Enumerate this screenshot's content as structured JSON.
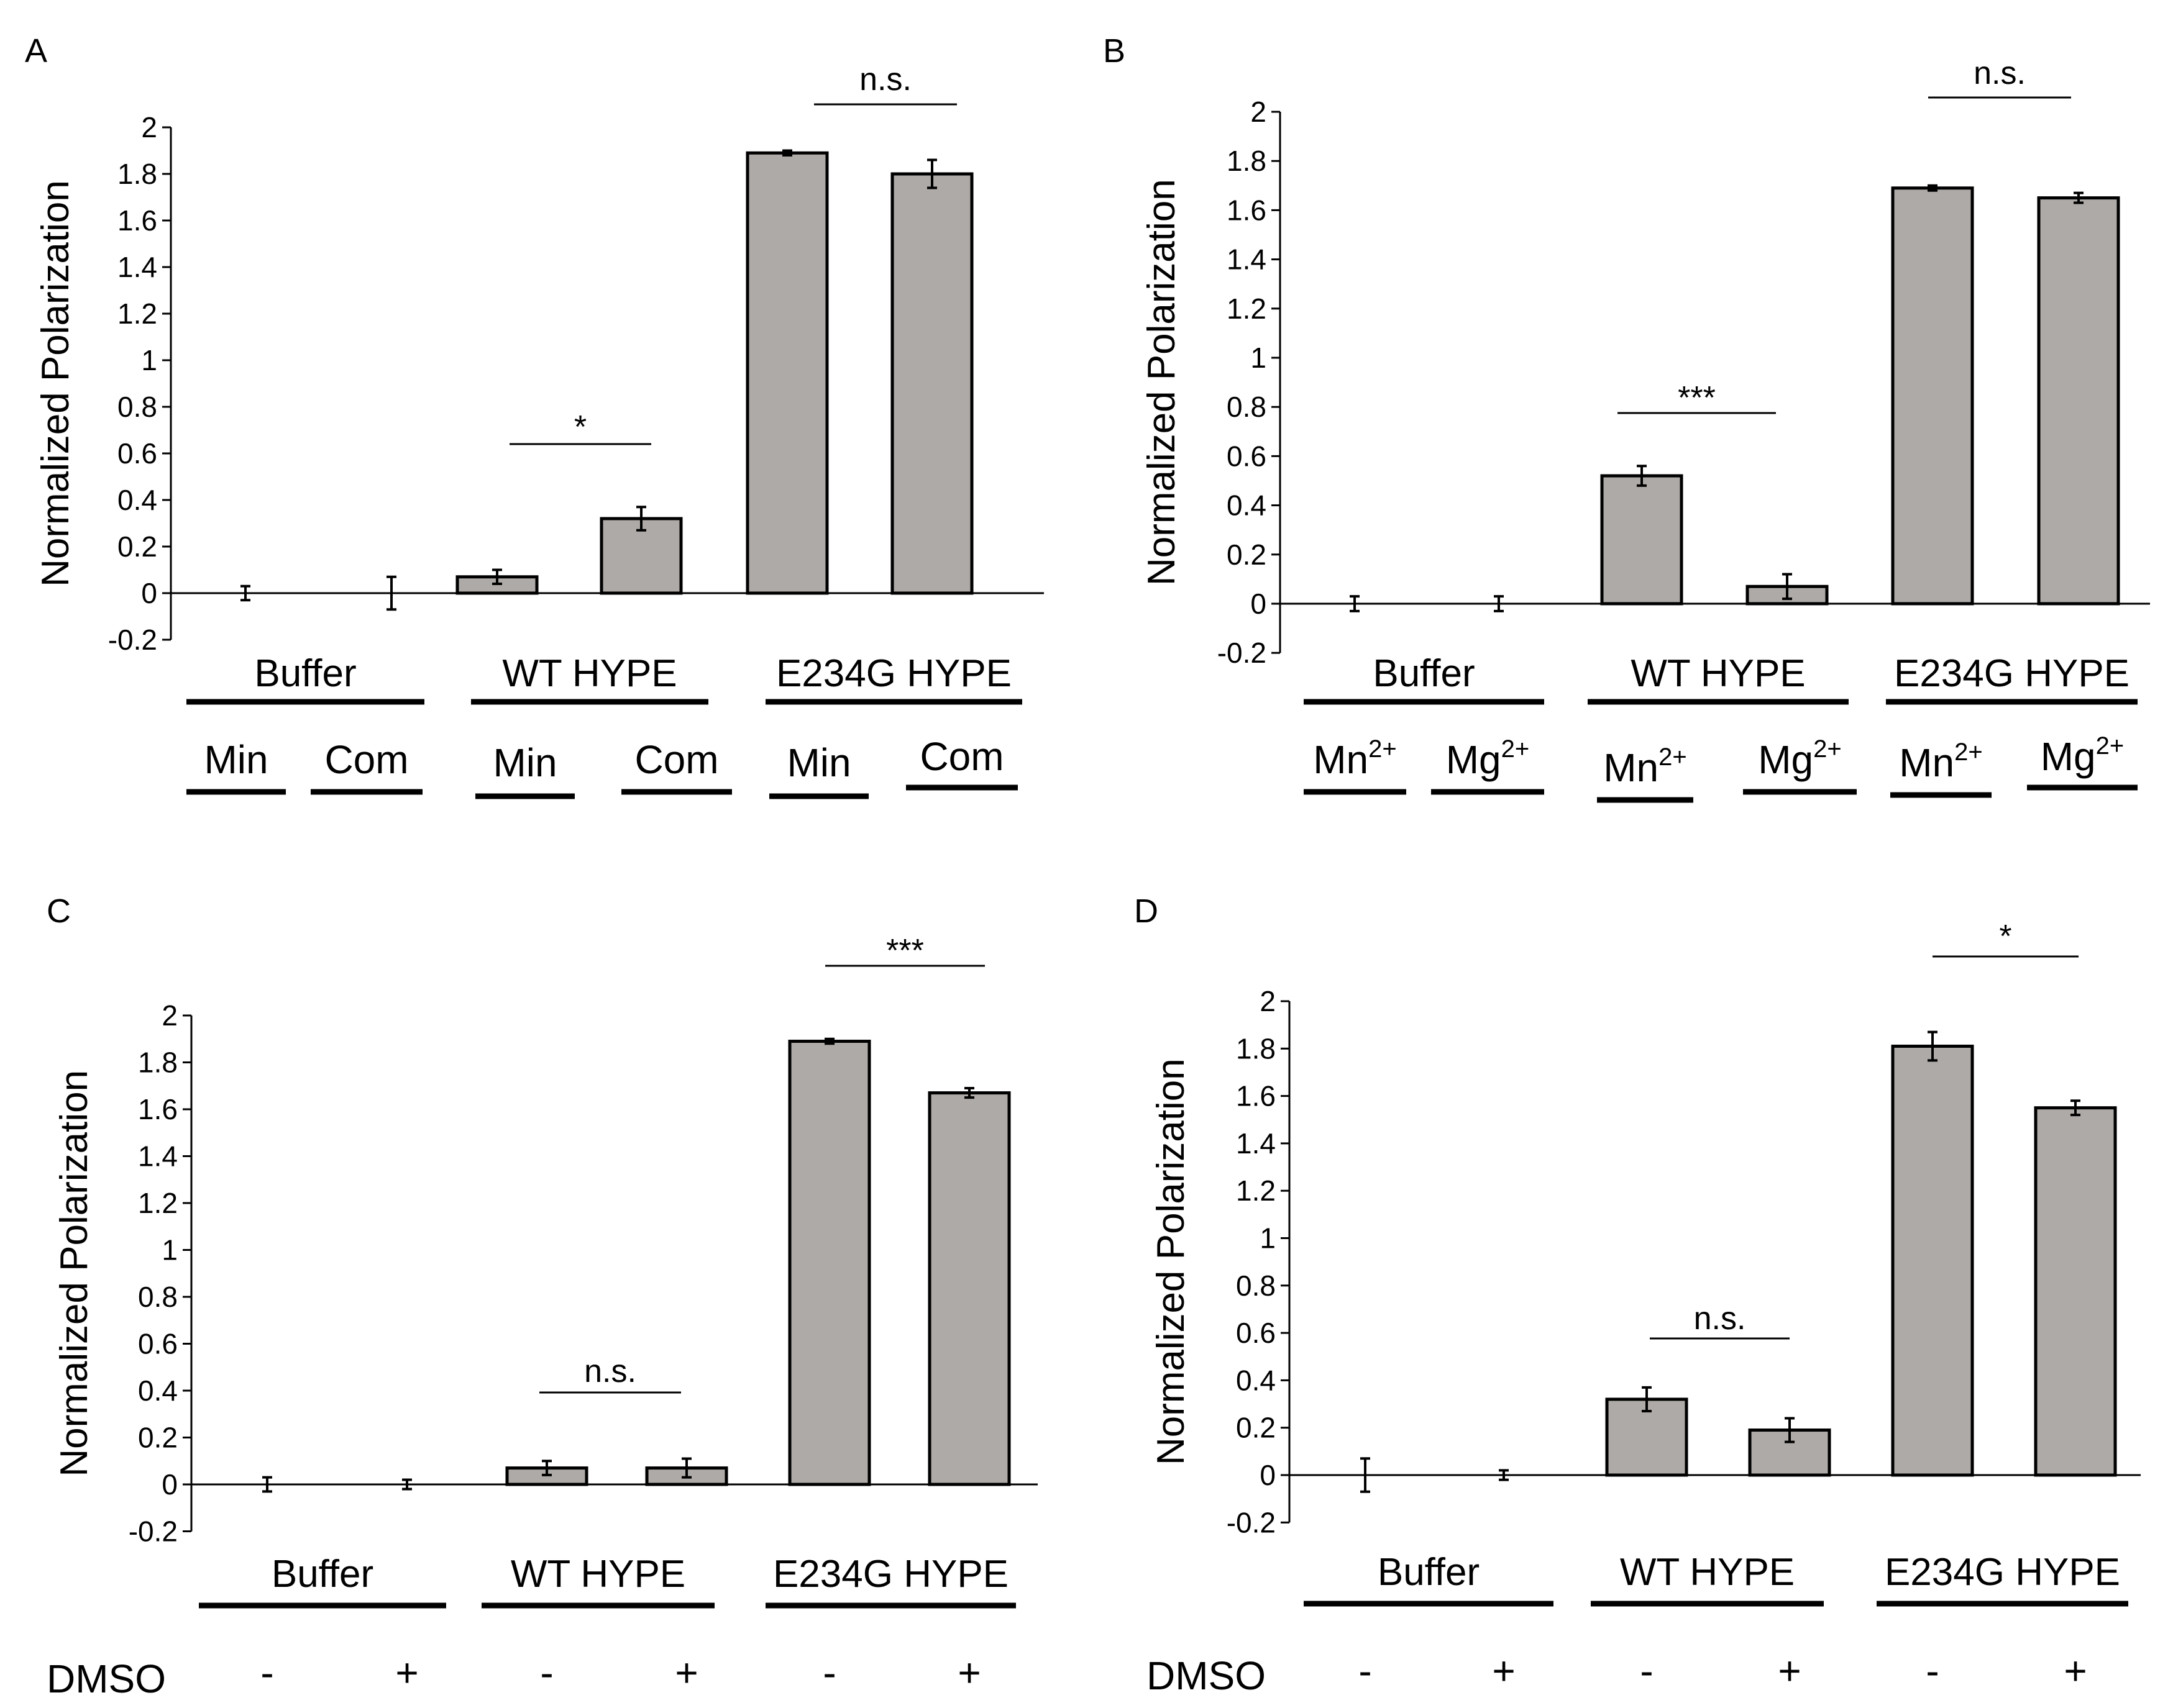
{
  "colors": {
    "bar_fill": "#aeaaa7",
    "stroke": "#000000",
    "background": "#ffffff"
  },
  "chart_data": [
    {
      "panel": "A",
      "type": "bar",
      "ylabel": "Normalized Polarization",
      "xlabel": "",
      "ylim": [
        -0.2,
        2
      ],
      "yticks": [
        "-0.2",
        "0",
        "0.2",
        "0.4",
        "0.6",
        "0.8",
        "1",
        "1.2",
        "1.4",
        "1.6",
        "1.8",
        "2"
      ],
      "groups": [
        "Buffer",
        "WT HYPE",
        "E234G HYPE"
      ],
      "categories": [
        "Min",
        "Com",
        "Min",
        "Com",
        "Min",
        "Com"
      ],
      "values": [
        0.0,
        0.0,
        0.07,
        0.32,
        1.89,
        1.8
      ],
      "errors": [
        0.03,
        0.07,
        0.03,
        0.05,
        0.01,
        0.06
      ],
      "significance": [
        {
          "label": "*",
          "between": [
            2,
            3
          ]
        },
        {
          "label": "n.s.",
          "between": [
            4,
            5
          ]
        }
      ]
    },
    {
      "panel": "B",
      "type": "bar",
      "ylabel": "Normalized Polarization",
      "xlabel": "",
      "ylim": [
        -0.2,
        2
      ],
      "yticks": [
        "-0.2",
        "0",
        "0.2",
        "0.4",
        "0.6",
        "0.8",
        "1",
        "1.2",
        "1.4",
        "1.6",
        "1.8",
        "2"
      ],
      "groups": [
        "Buffer",
        "WT HYPE",
        "E234G HYPE"
      ],
      "categories": [
        "Mn2+",
        "Mg2+",
        "Mn2+",
        "Mg2+",
        "Mn2+",
        "Mg2+"
      ],
      "category_labels": [
        {
          "base": "Mn",
          "sup": "2+"
        },
        {
          "base": "Mg",
          "sup": "2+"
        },
        {
          "base": "Mn",
          "sup": "2+"
        },
        {
          "base": "Mg",
          "sup": "2+"
        },
        {
          "base": "Mn",
          "sup": "2+"
        },
        {
          "base": "Mg",
          "sup": "2+"
        }
      ],
      "values": [
        0.0,
        0.0,
        0.52,
        0.07,
        1.69,
        1.65
      ],
      "errors": [
        0.03,
        0.03,
        0.04,
        0.05,
        0.01,
        0.02
      ],
      "significance": [
        {
          "label": "***",
          "between": [
            2,
            3
          ]
        },
        {
          "label": "n.s.",
          "between": [
            4,
            5
          ]
        }
      ]
    },
    {
      "panel": "C",
      "type": "bar",
      "ylabel": "Normalized Polarization",
      "xlabel": "",
      "ylim": [
        -0.2,
        2
      ],
      "yticks": [
        "-0.2",
        "0",
        "0.2",
        "0.4",
        "0.6",
        "0.8",
        "1",
        "1.2",
        "1.4",
        "1.6",
        "1.8",
        "2"
      ],
      "groups": [
        "Buffer",
        "WT HYPE",
        "E234G HYPE"
      ],
      "row_label": "DMSO",
      "categories": [
        "-",
        "+",
        "-",
        "+",
        "-",
        "+"
      ],
      "values": [
        0.0,
        0.0,
        0.07,
        0.07,
        1.89,
        1.67
      ],
      "errors": [
        0.03,
        0.02,
        0.03,
        0.04,
        0.01,
        0.02
      ],
      "significance": [
        {
          "label": "n.s.",
          "between": [
            2,
            3
          ]
        },
        {
          "label": "***",
          "between": [
            4,
            5
          ]
        }
      ]
    },
    {
      "panel": "D",
      "type": "bar",
      "ylabel": "Normalized Polarization",
      "xlabel": "",
      "ylim": [
        -0.2,
        2
      ],
      "yticks": [
        "-0.2",
        "0",
        "0.2",
        "0.4",
        "0.6",
        "0.8",
        "1",
        "1.2",
        "1.4",
        "1.6",
        "1.8",
        "2"
      ],
      "groups": [
        "Buffer",
        "WT HYPE",
        "E234G HYPE"
      ],
      "row_label": "DMSO",
      "categories": [
        "-",
        "+",
        "-",
        "+",
        "-",
        "+"
      ],
      "values": [
        0.0,
        0.0,
        0.32,
        0.19,
        1.81,
        1.55
      ],
      "errors": [
        0.07,
        0.02,
        0.05,
        0.05,
        0.06,
        0.03
      ],
      "significance": [
        {
          "label": "n.s.",
          "between": [
            2,
            3
          ]
        },
        {
          "label": "*",
          "between": [
            4,
            5
          ]
        }
      ]
    }
  ]
}
